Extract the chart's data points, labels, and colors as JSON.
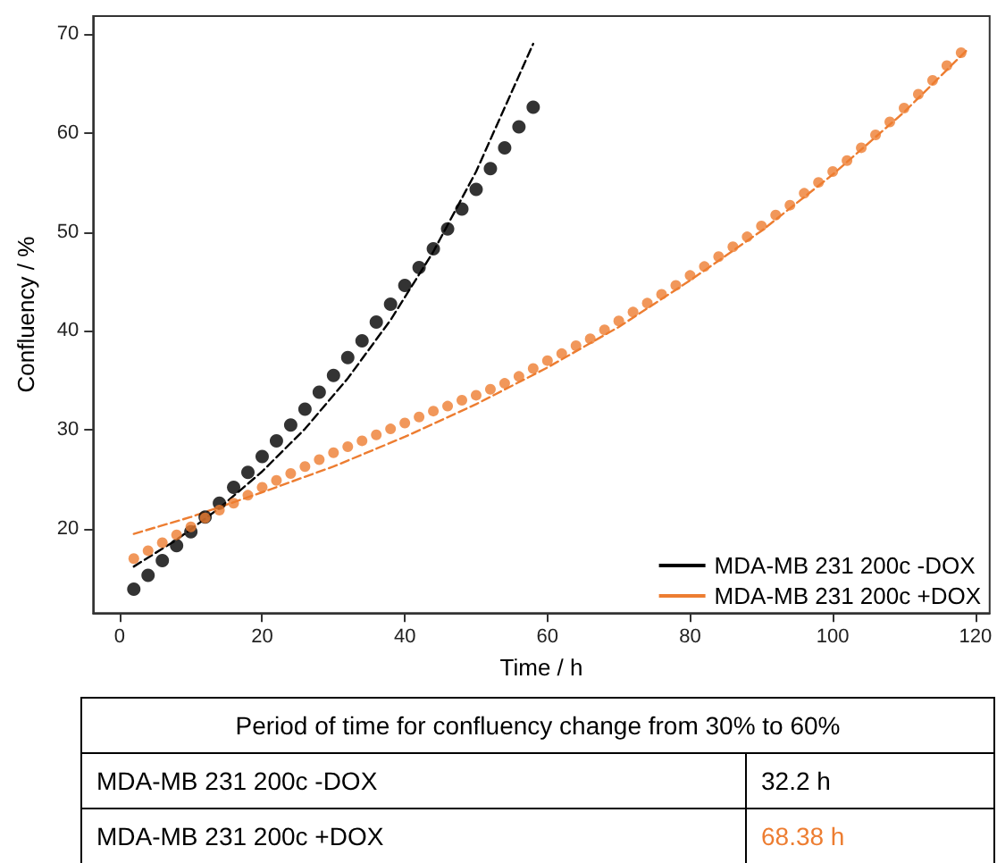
{
  "chart_data": {
    "type": "scatter",
    "xlabel": "Time / h",
    "ylabel": "Confluency / %",
    "xlim": [
      -3.7,
      122
    ],
    "xticks": [
      0,
      20,
      40,
      60,
      80,
      100,
      120
    ],
    "ylim": [
      11.5,
      71.8
    ],
    "yticks": [
      20,
      30,
      40,
      50,
      60,
      70
    ],
    "legend": "bottom right",
    "series": [
      {
        "type": "scatter",
        "marker": "circle",
        "color": "#000000",
        "x": [
          2,
          4,
          6,
          8,
          10,
          12,
          14,
          16,
          18,
          20,
          22,
          24,
          26,
          28,
          30,
          32,
          34,
          36,
          38,
          40,
          42,
          44,
          46,
          48,
          50,
          52,
          54,
          56,
          58
        ],
        "values": [
          13.9,
          15.3,
          16.8,
          18.3,
          19.7,
          21.2,
          22.6,
          24.2,
          25.7,
          27.3,
          28.9,
          30.5,
          32.1,
          33.8,
          35.5,
          37.3,
          39.0,
          40.9,
          42.7,
          44.6,
          46.4,
          48.3,
          50.3,
          52.3,
          54.3,
          56.4,
          58.5,
          60.6,
          62.6
        ]
      },
      {
        "type": "scatter",
        "marker": "circle",
        "color": "#ed7d31",
        "x": [
          2,
          4,
          6,
          8,
          10,
          12,
          14,
          16,
          18,
          20,
          22,
          24,
          26,
          28,
          30,
          32,
          34,
          36,
          38,
          40,
          42,
          44,
          46,
          48,
          50,
          52,
          54,
          56,
          58,
          60,
          62,
          64,
          66,
          68,
          70,
          72,
          74,
          76,
          78,
          80,
          82,
          84,
          86,
          88,
          90,
          92,
          94,
          96,
          98,
          100,
          102,
          104,
          106,
          108,
          110,
          112,
          114,
          116,
          118
        ],
        "values": [
          17.0,
          17.8,
          18.6,
          19.4,
          20.2,
          21.1,
          21.9,
          22.6,
          23.4,
          24.2,
          24.9,
          25.6,
          26.3,
          27.0,
          27.7,
          28.3,
          28.9,
          29.5,
          30.1,
          30.7,
          31.3,
          31.9,
          32.4,
          33.0,
          33.5,
          34.1,
          34.7,
          35.4,
          36.2,
          37.0,
          37.7,
          38.5,
          39.2,
          40.1,
          41.0,
          41.9,
          42.8,
          43.7,
          44.6,
          45.6,
          46.5,
          47.5,
          48.5,
          49.5,
          50.6,
          51.7,
          52.7,
          53.9,
          55.0,
          56.1,
          57.2,
          58.5,
          59.8,
          61.1,
          62.5,
          63.9,
          65.3,
          66.8,
          68.1
        ]
      },
      {
        "type": "line",
        "name": "MDA-MB 231 200c -DOX",
        "line_style": "dashed",
        "color": "#000000",
        "x": [
          2,
          8,
          14,
          20,
          26,
          32,
          38,
          44,
          50,
          58
        ],
        "values": [
          16.2,
          18.9,
          22.1,
          25.8,
          30.1,
          35.2,
          41.1,
          48.0,
          56.1,
          69.0
        ]
      },
      {
        "type": "line",
        "name": "MDA-MB 231 200c +DOX",
        "line_style": "dashed",
        "color": "#ed7d31",
        "x": [
          2,
          10,
          20,
          30,
          40,
          50,
          60,
          70,
          80,
          90,
          100,
          110,
          119
        ],
        "values": [
          19.5,
          21.2,
          23.7,
          26.3,
          29.3,
          32.6,
          36.3,
          40.4,
          45.1,
          50.1,
          55.8,
          62.1,
          68.5
        ]
      }
    ],
    "annotations": [
      "Period of time for confluency change from 30% to 60%",
      "MDA-MB 231 200c -DOX",
      "32.2 h",
      "MDA-MB 231 200c +DOX",
      "68.38 h"
    ]
  }
}
